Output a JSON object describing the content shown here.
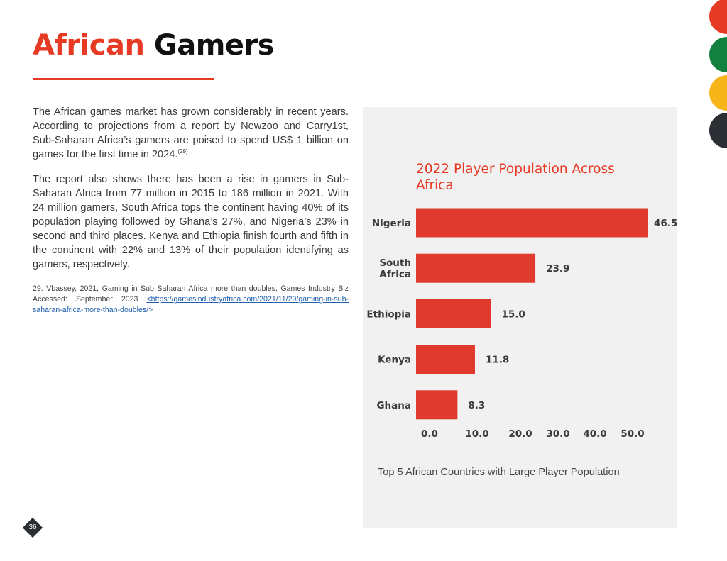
{
  "page": {
    "title_accent": "African",
    "title_main": " Gamers",
    "page_number": "36"
  },
  "body": {
    "paragraph1": "The African games market has grown considerably in recent years. According to projections from a report by Newzoo and Carry1st, Sub-Saharan Africa’s gamers are poised to spend US$ 1 billion on games for the first time in 2024.",
    "paragraph1_ref": "(29)",
    "paragraph2": "The report also shows there has been a rise in gamers in Sub-Saharan Africa from 77 million in 2015 to 186 million in 2021. With 24 million gamers, South Africa tops the continent having 40% of its population playing followed by Ghana’s 27%, and Nigeria’s 23% in second and third places. Kenya and Ethiopia finish fourth and fifth in the continent with 22% and 13% of their population identifying as gamers, respectively.",
    "footnote_text": "29. Vbassey, 2021, Gaming  in Sub Saharan Africa more than doubles, Games Industry Biz Accessed: September 2023 ",
    "footnote_link": "<https://gamesindustryafrica.com/2021/11/29/gaming-in-sub-saharan-africa-more-than-doubles/>"
  },
  "chart_data": {
    "type": "bar",
    "orientation": "horizontal",
    "title": "2022 Player Population Across Africa",
    "title_lines": [
      "2022 Player Population Across",
      "Africa"
    ],
    "categories": [
      "Nigeria",
      "South Africa",
      "Ethiopia",
      "Kenya",
      "Ghana"
    ],
    "category_lines": [
      [
        "Nigeria"
      ],
      [
        "South",
        "Africa"
      ],
      [
        "Ethiopia"
      ],
      [
        "Kenya"
      ],
      [
        "Ghana"
      ]
    ],
    "values": [
      46.5,
      23.9,
      15.0,
      11.8,
      8.3
    ],
    "value_labels": [
      "46.5",
      "23.9",
      "15.0",
      "11.8",
      "8.3"
    ],
    "tick_labels": [
      "0.0",
      "10.0",
      "20.0",
      "30.0",
      "40.0",
      "50.0"
    ],
    "xlim": [
      0,
      46.5
    ],
    "grid": false,
    "bar_color": "#e03a2e",
    "title_color": "#e63a24",
    "caption": "Top 5 African Countries with Large Player Population"
  },
  "colors": {
    "accent": "#e63a24",
    "green": "#12813f",
    "yellow": "#f7b51a",
    "dark": "#2b2e33",
    "panel_bg": "#f1f1f1"
  },
  "decorations": {
    "dot_colors": [
      "red",
      "green",
      "yellow",
      "dark"
    ],
    "page_badge_shape": "diamond"
  }
}
